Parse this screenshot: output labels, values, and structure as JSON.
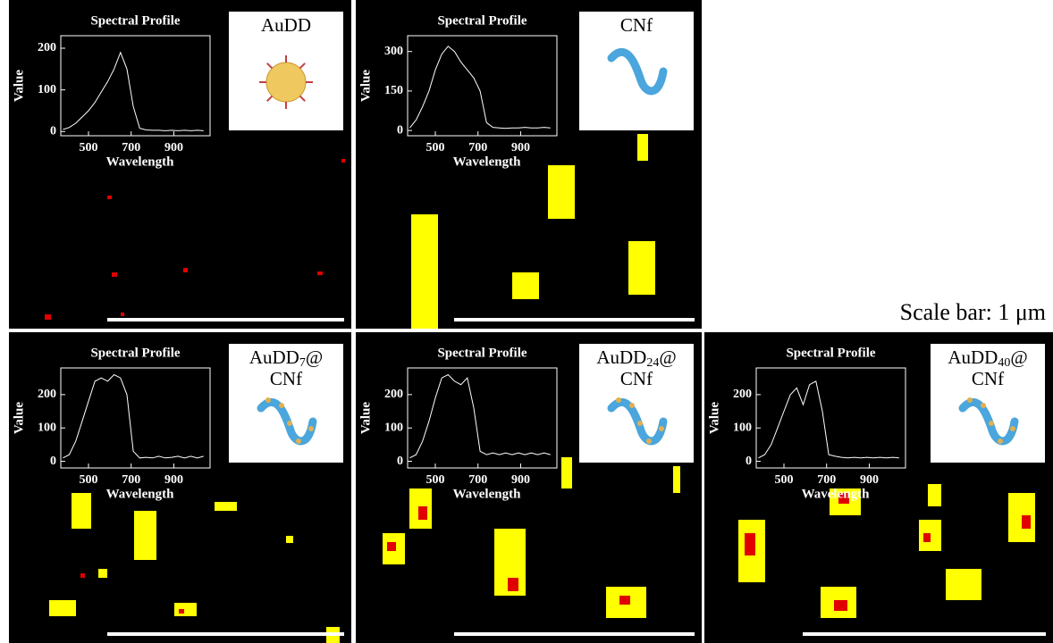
{
  "chart_data": [
    {
      "type": "line",
      "title": "Spectral Profile",
      "x_label": "Wavelength",
      "y_label": "Value",
      "color": "#ffffff",
      "x": [
        380,
        410,
        440,
        470,
        500,
        530,
        560,
        590,
        620,
        650,
        680,
        710,
        740,
        770,
        800,
        830,
        860,
        890,
        920,
        950,
        980,
        1010,
        1040
      ],
      "values": [
        5,
        10,
        20,
        35,
        50,
        70,
        95,
        120,
        150,
        190,
        150,
        60,
        8,
        4,
        3,
        3,
        2,
        3,
        2,
        3,
        2,
        3,
        2
      ],
      "xlim": [
        370,
        1070
      ],
      "ylim": [
        -10,
        230
      ],
      "xticks": [
        500,
        700,
        900
      ],
      "yticks": [
        0,
        100,
        200
      ]
    },
    {
      "type": "line",
      "title": "Spectral Profile",
      "x_label": "Wavelength",
      "y_label": "Value",
      "color": "#ffffff",
      "x": [
        380,
        410,
        440,
        470,
        500,
        530,
        560,
        590,
        620,
        650,
        680,
        710,
        740,
        770,
        800,
        830,
        860,
        890,
        920,
        950,
        980,
        1010,
        1040
      ],
      "values": [
        10,
        40,
        90,
        150,
        230,
        290,
        320,
        300,
        260,
        230,
        200,
        150,
        30,
        12,
        10,
        8,
        10,
        10,
        12,
        10,
        10,
        12,
        10
      ],
      "xlim": [
        370,
        1070
      ],
      "ylim": [
        -20,
        360
      ],
      "xticks": [
        500,
        700,
        900
      ],
      "yticks": [
        0,
        150,
        300
      ]
    },
    {
      "type": "line",
      "title": "Spectral Profile",
      "x_label": "Wavelength",
      "y_label": "Value",
      "color": "#ffffff",
      "x": [
        380,
        410,
        440,
        470,
        500,
        530,
        560,
        590,
        620,
        650,
        680,
        710,
        740,
        770,
        800,
        830,
        860,
        890,
        920,
        950,
        980,
        1010,
        1040
      ],
      "values": [
        10,
        20,
        60,
        120,
        180,
        240,
        250,
        240,
        260,
        250,
        200,
        30,
        10,
        12,
        10,
        15,
        10,
        12,
        15,
        10,
        15,
        10,
        15
      ],
      "xlim": [
        370,
        1070
      ],
      "ylim": [
        -20,
        280
      ],
      "xticks": [
        500,
        700,
        900
      ],
      "yticks": [
        0,
        100,
        200
      ]
    },
    {
      "type": "line",
      "title": "Spectral Profile",
      "x_label": "Wavelength",
      "y_label": "Value",
      "color": "#ffffff",
      "x": [
        380,
        410,
        440,
        470,
        500,
        530,
        560,
        590,
        620,
        650,
        680,
        710,
        740,
        770,
        800,
        830,
        860,
        890,
        920,
        950,
        980,
        1010,
        1040
      ],
      "values": [
        10,
        20,
        60,
        120,
        190,
        250,
        260,
        240,
        230,
        250,
        160,
        30,
        20,
        25,
        20,
        25,
        20,
        25,
        20,
        25,
        20,
        25,
        20
      ],
      "xlim": [
        370,
        1070
      ],
      "ylim": [
        -20,
        280
      ],
      "xticks": [
        500,
        700,
        900
      ],
      "yticks": [
        0,
        100,
        200
      ]
    },
    {
      "type": "line",
      "title": "Spectral Profile",
      "x_label": "Wavelength",
      "y_label": "Value",
      "color": "#ffffff",
      "x": [
        380,
        410,
        440,
        470,
        500,
        530,
        560,
        590,
        620,
        650,
        680,
        710,
        740,
        770,
        800,
        830,
        860,
        890,
        920,
        950,
        980,
        1010,
        1040
      ],
      "values": [
        10,
        20,
        50,
        100,
        150,
        200,
        220,
        170,
        230,
        240,
        150,
        20,
        15,
        12,
        10,
        12,
        10,
        12,
        10,
        12,
        10,
        12,
        10
      ],
      "xlim": [
        370,
        1070
      ],
      "ylim": [
        -20,
        280
      ],
      "xticks": [
        500,
        700,
        900
      ],
      "yticks": [
        0,
        100,
        200
      ]
    }
  ],
  "insets": [
    {
      "text": "AuDD"
    },
    {
      "text": "CNf"
    },
    {
      "text": "AuDD",
      "sub": "7",
      "after": "@",
      "line2": "CNf"
    },
    {
      "text": "AuDD",
      "sub": "24",
      "after": "@",
      "line2": "CNf"
    },
    {
      "text": "AuDD",
      "sub": "40",
      "after": "@",
      "line2": "CNf"
    }
  ],
  "scale_bar_label": "Scale bar: 1 μm"
}
